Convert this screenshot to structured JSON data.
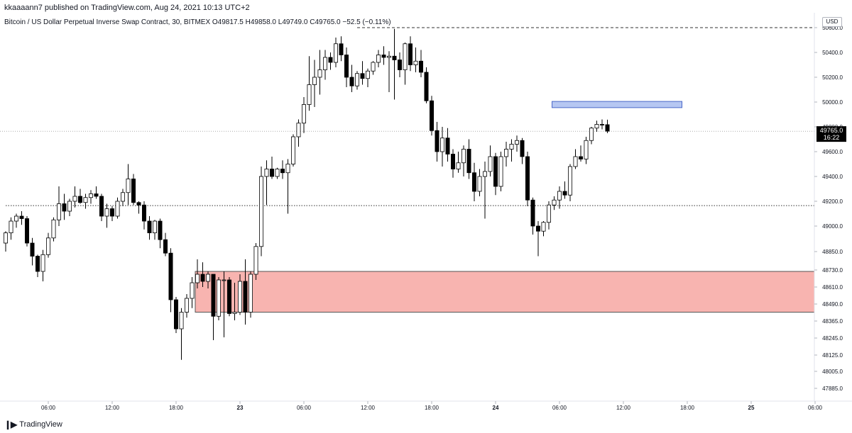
{
  "header": {
    "publisher_line": "kkaaaann7 published on TradingView.com, Aug 24, 2021 10:13 UTC+2",
    "symbol_line": "Bitcoin / US Dollar Perpetual Inverse Swap Contract, 30, BITMEX  O49817.5  H49858.0  L49749.0  C49765.0  −52.5 (−0.11%)"
  },
  "footer": {
    "brand": "TradingView",
    "brand_icon": "tradingview-logo-icon"
  },
  "chart_data": {
    "type": "candlestick",
    "currency": "USD",
    "price_axis_ticks": [
      {
        "price": 50600,
        "label": "50600.0"
      },
      {
        "price": 50400,
        "label": "50400.0"
      },
      {
        "price": 50200,
        "label": "50200.0"
      },
      {
        "price": 50000,
        "label": "50000.0"
      },
      {
        "price": 49800,
        "label": "49800.0"
      },
      {
        "price": 49600,
        "label": "49600.0"
      },
      {
        "price": 49400,
        "label": "49400.0"
      },
      {
        "price": 49200,
        "label": "49200.0"
      },
      {
        "price": 49000,
        "label": "49000.0"
      },
      {
        "price": 48850,
        "label": "48850.0"
      },
      {
        "price": 48730,
        "label": "48730.0"
      },
      {
        "price": 48610,
        "label": "48610.0"
      },
      {
        "price": 48490,
        "label": "48490.0"
      },
      {
        "price": 48365,
        "label": "48365.0"
      },
      {
        "price": 48245,
        "label": "48245.0"
      },
      {
        "price": 48125,
        "label": "48125.0"
      },
      {
        "price": 48005,
        "label": "48005.0"
      },
      {
        "price": 47885,
        "label": "47885.0"
      }
    ],
    "time_axis_ticks": [
      {
        "bar": 8,
        "label": "06:00"
      },
      {
        "bar": 20,
        "label": "12:00"
      },
      {
        "bar": 32,
        "label": "18:00"
      },
      {
        "bar": 44,
        "label": "23"
      },
      {
        "bar": 56,
        "label": "06:00"
      },
      {
        "bar": 68,
        "label": "12:00"
      },
      {
        "bar": 80,
        "label": "18:00"
      },
      {
        "bar": 92,
        "label": "24"
      },
      {
        "bar": 104,
        "label": "06:00"
      },
      {
        "bar": 116,
        "label": "12:00"
      },
      {
        "bar": 128,
        "label": "18:00"
      },
      {
        "bar": 140,
        "label": "25"
      },
      {
        "bar": 152,
        "label": "06:00"
      }
    ],
    "last_price": {
      "price": 49765,
      "label": "49765.0",
      "countdown": "16:22"
    },
    "horizontal_lines": [
      {
        "price": 50600,
        "style": "dashed",
        "from_bar": 66
      },
      {
        "price": 49165,
        "style": "dotted",
        "from_bar": 0
      }
    ],
    "zones": [
      {
        "name": "demand-zone",
        "from_bar": 36,
        "price_top": 48720,
        "price_bottom": 48430,
        "fill": "#f8b4b0",
        "stroke": "#555555"
      },
      {
        "name": "supply-zone",
        "from_bar": 103,
        "to_bar": 127,
        "price_top": 50005,
        "price_bottom": 49955,
        "fill": "#b6c7f2",
        "stroke": "#4a67c9"
      }
    ],
    "colors": {
      "up_body": "#ffffff",
      "down_body": "#000000",
      "wick": "#000000",
      "background": "#ffffff"
    },
    "candles": [
      {
        "o": 48900,
        "h": 48970,
        "l": 48850,
        "c": 48960
      },
      {
        "o": 48960,
        "h": 49070,
        "l": 48920,
        "c": 49040
      },
      {
        "o": 49040,
        "h": 49100,
        "l": 48990,
        "c": 49080
      },
      {
        "o": 49080,
        "h": 49120,
        "l": 49010,
        "c": 49060
      },
      {
        "o": 49060,
        "h": 49080,
        "l": 48880,
        "c": 48900
      },
      {
        "o": 48900,
        "h": 48930,
        "l": 48760,
        "c": 48820
      },
      {
        "o": 48820,
        "h": 48830,
        "l": 48680,
        "c": 48720
      },
      {
        "o": 48720,
        "h": 48860,
        "l": 48650,
        "c": 48830
      },
      {
        "o": 48830,
        "h": 48960,
        "l": 48810,
        "c": 48930
      },
      {
        "o": 48930,
        "h": 49070,
        "l": 48910,
        "c": 49050
      },
      {
        "o": 49050,
        "h": 49320,
        "l": 49000,
        "c": 49180
      },
      {
        "o": 49180,
        "h": 49260,
        "l": 49050,
        "c": 49120
      },
      {
        "o": 49120,
        "h": 49220,
        "l": 49080,
        "c": 49200
      },
      {
        "o": 49200,
        "h": 49320,
        "l": 49150,
        "c": 49240
      },
      {
        "o": 49240,
        "h": 49300,
        "l": 49180,
        "c": 49190
      },
      {
        "o": 49190,
        "h": 49260,
        "l": 49140,
        "c": 49230
      },
      {
        "o": 49230,
        "h": 49290,
        "l": 49180,
        "c": 49260
      },
      {
        "o": 49260,
        "h": 49320,
        "l": 49220,
        "c": 49240
      },
      {
        "o": 49240,
        "h": 49260,
        "l": 49040,
        "c": 49080
      },
      {
        "o": 49080,
        "h": 49180,
        "l": 48990,
        "c": 49140
      },
      {
        "o": 49140,
        "h": 49160,
        "l": 49040,
        "c": 49080
      },
      {
        "o": 49080,
        "h": 49230,
        "l": 49060,
        "c": 49200
      },
      {
        "o": 49200,
        "h": 49300,
        "l": 49160,
        "c": 49270
      },
      {
        "o": 49270,
        "h": 49500,
        "l": 49170,
        "c": 49380
      },
      {
        "o": 49380,
        "h": 49420,
        "l": 49170,
        "c": 49190
      },
      {
        "o": 49190,
        "h": 49200,
        "l": 49100,
        "c": 49170
      },
      {
        "o": 49170,
        "h": 49200,
        "l": 48980,
        "c": 49040
      },
      {
        "o": 49040,
        "h": 49080,
        "l": 48920,
        "c": 48960
      },
      {
        "o": 48960,
        "h": 49050,
        "l": 48920,
        "c": 49040
      },
      {
        "o": 49040,
        "h": 49060,
        "l": 48870,
        "c": 48920
      },
      {
        "o": 48920,
        "h": 48960,
        "l": 48820,
        "c": 48840
      },
      {
        "o": 48840,
        "h": 48870,
        "l": 48430,
        "c": 48520
      },
      {
        "o": 48520,
        "h": 48540,
        "l": 48280,
        "c": 48310
      },
      {
        "o": 48310,
        "h": 48460,
        "l": 48090,
        "c": 48430
      },
      {
        "o": 48430,
        "h": 48560,
        "l": 48390,
        "c": 48530
      },
      {
        "o": 48530,
        "h": 48680,
        "l": 48460,
        "c": 48640
      },
      {
        "o": 48640,
        "h": 48800,
        "l": 48600,
        "c": 48700
      },
      {
        "o": 48700,
        "h": 48780,
        "l": 48610,
        "c": 48650
      },
      {
        "o": 48650,
        "h": 48720,
        "l": 48600,
        "c": 48700
      },
      {
        "o": 48700,
        "h": 48700,
        "l": 48230,
        "c": 48400
      },
      {
        "o": 48400,
        "h": 48680,
        "l": 48370,
        "c": 48660
      },
      {
        "o": 48660,
        "h": 48720,
        "l": 48250,
        "c": 48660
      },
      {
        "o": 48660,
        "h": 48680,
        "l": 48400,
        "c": 48420
      },
      {
        "o": 48420,
        "h": 48640,
        "l": 48370,
        "c": 48430
      },
      {
        "o": 48430,
        "h": 48700,
        "l": 48410,
        "c": 48650
      },
      {
        "o": 48650,
        "h": 48800,
        "l": 48340,
        "c": 48430
      },
      {
        "o": 48430,
        "h": 48720,
        "l": 48390,
        "c": 48700
      },
      {
        "o": 48700,
        "h": 48900,
        "l": 48660,
        "c": 48880
      },
      {
        "o": 48880,
        "h": 49480,
        "l": 48820,
        "c": 49400
      },
      {
        "o": 49400,
        "h": 49530,
        "l": 49170,
        "c": 49460
      },
      {
        "o": 49460,
        "h": 49560,
        "l": 49380,
        "c": 49400
      },
      {
        "o": 49400,
        "h": 49470,
        "l": 49380,
        "c": 49460
      },
      {
        "o": 49460,
        "h": 49530,
        "l": 49380,
        "c": 49430
      },
      {
        "o": 49430,
        "h": 49540,
        "l": 49100,
        "c": 49500
      },
      {
        "o": 49500,
        "h": 49740,
        "l": 49480,
        "c": 49720
      },
      {
        "o": 49720,
        "h": 49860,
        "l": 49640,
        "c": 49830
      },
      {
        "o": 49830,
        "h": 50040,
        "l": 49750,
        "c": 49980
      },
      {
        "o": 49980,
        "h": 50370,
        "l": 49930,
        "c": 50140
      },
      {
        "o": 50140,
        "h": 50340,
        "l": 49960,
        "c": 50200
      },
      {
        "o": 50200,
        "h": 50420,
        "l": 50060,
        "c": 50260
      },
      {
        "o": 50260,
        "h": 50420,
        "l": 50180,
        "c": 50360
      },
      {
        "o": 50360,
        "h": 50400,
        "l": 50260,
        "c": 50320
      },
      {
        "o": 50320,
        "h": 50520,
        "l": 50280,
        "c": 50470
      },
      {
        "o": 50470,
        "h": 50530,
        "l": 50330,
        "c": 50380
      },
      {
        "o": 50380,
        "h": 50440,
        "l": 50120,
        "c": 50200
      },
      {
        "o": 50200,
        "h": 50300,
        "l": 50080,
        "c": 50130
      },
      {
        "o": 50130,
        "h": 50250,
        "l": 50100,
        "c": 50230
      },
      {
        "o": 50230,
        "h": 50330,
        "l": 50140,
        "c": 50190
      },
      {
        "o": 50190,
        "h": 50270,
        "l": 50120,
        "c": 50250
      },
      {
        "o": 50250,
        "h": 50330,
        "l": 50220,
        "c": 50320
      },
      {
        "o": 50320,
        "h": 50420,
        "l": 50280,
        "c": 50380
      },
      {
        "o": 50380,
        "h": 50450,
        "l": 50300,
        "c": 50360
      },
      {
        "o": 50360,
        "h": 50410,
        "l": 50080,
        "c": 50370
      },
      {
        "o": 50370,
        "h": 50590,
        "l": 50020,
        "c": 50340
      },
      {
        "o": 50340,
        "h": 50400,
        "l": 50200,
        "c": 50260
      },
      {
        "o": 50260,
        "h": 50480,
        "l": 50140,
        "c": 50470
      },
      {
        "o": 50470,
        "h": 50530,
        "l": 50250,
        "c": 50300
      },
      {
        "o": 50300,
        "h": 50440,
        "l": 50240,
        "c": 50330
      },
      {
        "o": 50330,
        "h": 50420,
        "l": 50200,
        "c": 50240
      },
      {
        "o": 50240,
        "h": 50280,
        "l": 49990,
        "c": 50010
      },
      {
        "o": 50010,
        "h": 50050,
        "l": 49730,
        "c": 49770
      },
      {
        "o": 49770,
        "h": 49840,
        "l": 49520,
        "c": 49600
      },
      {
        "o": 49600,
        "h": 49800,
        "l": 49480,
        "c": 49710
      },
      {
        "o": 49710,
        "h": 49790,
        "l": 49520,
        "c": 49580
      },
      {
        "o": 49580,
        "h": 49620,
        "l": 49390,
        "c": 49460
      },
      {
        "o": 49460,
        "h": 49600,
        "l": 49430,
        "c": 49510
      },
      {
        "o": 49510,
        "h": 49650,
        "l": 49400,
        "c": 49620
      },
      {
        "o": 49620,
        "h": 49700,
        "l": 49380,
        "c": 49430
      },
      {
        "o": 49430,
        "h": 49510,
        "l": 49200,
        "c": 49280
      },
      {
        "o": 49280,
        "h": 49460,
        "l": 49240,
        "c": 49400
      },
      {
        "o": 49400,
        "h": 49520,
        "l": 49060,
        "c": 49440
      },
      {
        "o": 49440,
        "h": 49650,
        "l": 49400,
        "c": 49560
      },
      {
        "o": 49560,
        "h": 49590,
        "l": 49250,
        "c": 49320
      },
      {
        "o": 49320,
        "h": 49600,
        "l": 49280,
        "c": 49560
      },
      {
        "o": 49560,
        "h": 49680,
        "l": 49480,
        "c": 49620
      },
      {
        "o": 49620,
        "h": 49700,
        "l": 49520,
        "c": 49660
      },
      {
        "o": 49660,
        "h": 49730,
        "l": 49600,
        "c": 49690
      },
      {
        "o": 49690,
        "h": 49710,
        "l": 49500,
        "c": 49560
      },
      {
        "o": 49560,
        "h": 49600,
        "l": 49160,
        "c": 49210
      },
      {
        "o": 49210,
        "h": 49230,
        "l": 48950,
        "c": 49000
      },
      {
        "o": 49000,
        "h": 49040,
        "l": 48820,
        "c": 48970
      },
      {
        "o": 48970,
        "h": 49040,
        "l": 48940,
        "c": 49030
      },
      {
        "o": 49030,
        "h": 49200,
        "l": 48980,
        "c": 49170
      },
      {
        "o": 49170,
        "h": 49240,
        "l": 49130,
        "c": 49210
      },
      {
        "o": 49210,
        "h": 49320,
        "l": 49140,
        "c": 49280
      },
      {
        "o": 49280,
        "h": 49360,
        "l": 49220,
        "c": 49250
      },
      {
        "o": 49250,
        "h": 49500,
        "l": 49200,
        "c": 49480
      },
      {
        "o": 49480,
        "h": 49620,
        "l": 49460,
        "c": 49560
      },
      {
        "o": 49560,
        "h": 49650,
        "l": 49520,
        "c": 49540
      },
      {
        "o": 49540,
        "h": 49720,
        "l": 49500,
        "c": 49690
      },
      {
        "o": 49690,
        "h": 49800,
        "l": 49660,
        "c": 49790
      },
      {
        "o": 49790,
        "h": 49850,
        "l": 49760,
        "c": 49820
      },
      {
        "o": 49820,
        "h": 49860,
        "l": 49780,
        "c": 49818
      },
      {
        "o": 49817.5,
        "h": 49858,
        "l": 49749,
        "c": 49765
      }
    ]
  }
}
